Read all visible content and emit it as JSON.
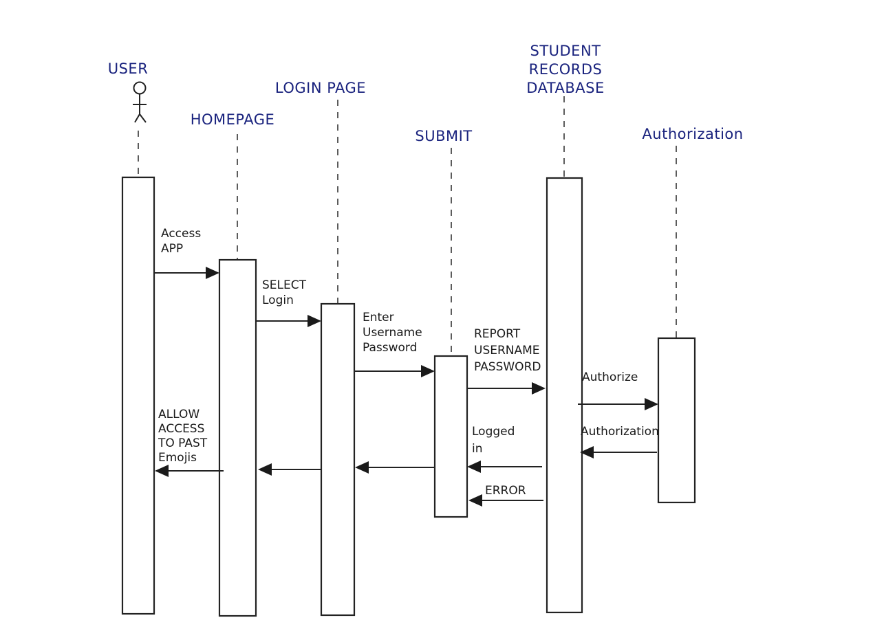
{
  "colors": {
    "label": "#1a237e",
    "ink": "#1a1a1a"
  },
  "participants": [
    {
      "id": "user",
      "lines": [
        "USER"
      ]
    },
    {
      "id": "homepage",
      "lines": [
        "HOMEPAGE"
      ]
    },
    {
      "id": "loginpage",
      "lines": [
        "LOGIN PAGE"
      ]
    },
    {
      "id": "submit",
      "lines": [
        "SUBMIT"
      ]
    },
    {
      "id": "database",
      "lines": [
        "STUDENT",
        "RECORDS",
        "DATABASE"
      ]
    },
    {
      "id": "authorization",
      "lines": [
        "Authorization"
      ]
    }
  ],
  "messages": [
    {
      "id": "access-app",
      "from": "user",
      "to": "homepage",
      "lines": [
        "Access",
        "APP"
      ]
    },
    {
      "id": "select-login",
      "from": "homepage",
      "to": "loginpage",
      "lines": [
        "SELECT",
        "Login"
      ]
    },
    {
      "id": "enter-credentials",
      "from": "loginpage",
      "to": "submit",
      "lines": [
        "Enter",
        "Username",
        "Password"
      ]
    },
    {
      "id": "report-credentials",
      "from": "submit",
      "to": "database",
      "lines": [
        "REPORT",
        "USERNAME",
        "PASSWORD"
      ]
    },
    {
      "id": "authorize",
      "from": "database",
      "to": "authorization",
      "lines": [
        "Authorize"
      ]
    },
    {
      "id": "authorization-return",
      "from": "authorization",
      "to": "database",
      "lines": [
        "Authorization"
      ]
    },
    {
      "id": "logged-in",
      "from": "database",
      "to": "submit",
      "lines": [
        "Logged",
        "in"
      ]
    },
    {
      "id": "error",
      "from": "database",
      "to": "submit",
      "lines": [
        "ERROR"
      ]
    },
    {
      "id": "return-to-login",
      "from": "submit",
      "to": "loginpage",
      "lines": []
    },
    {
      "id": "return-to-homepage",
      "from": "loginpage",
      "to": "homepage",
      "lines": []
    },
    {
      "id": "allow-access",
      "from": "homepage",
      "to": "user",
      "lines": [
        "ALLOW",
        "ACCESS",
        "TO PAST",
        "Emojis"
      ]
    }
  ]
}
